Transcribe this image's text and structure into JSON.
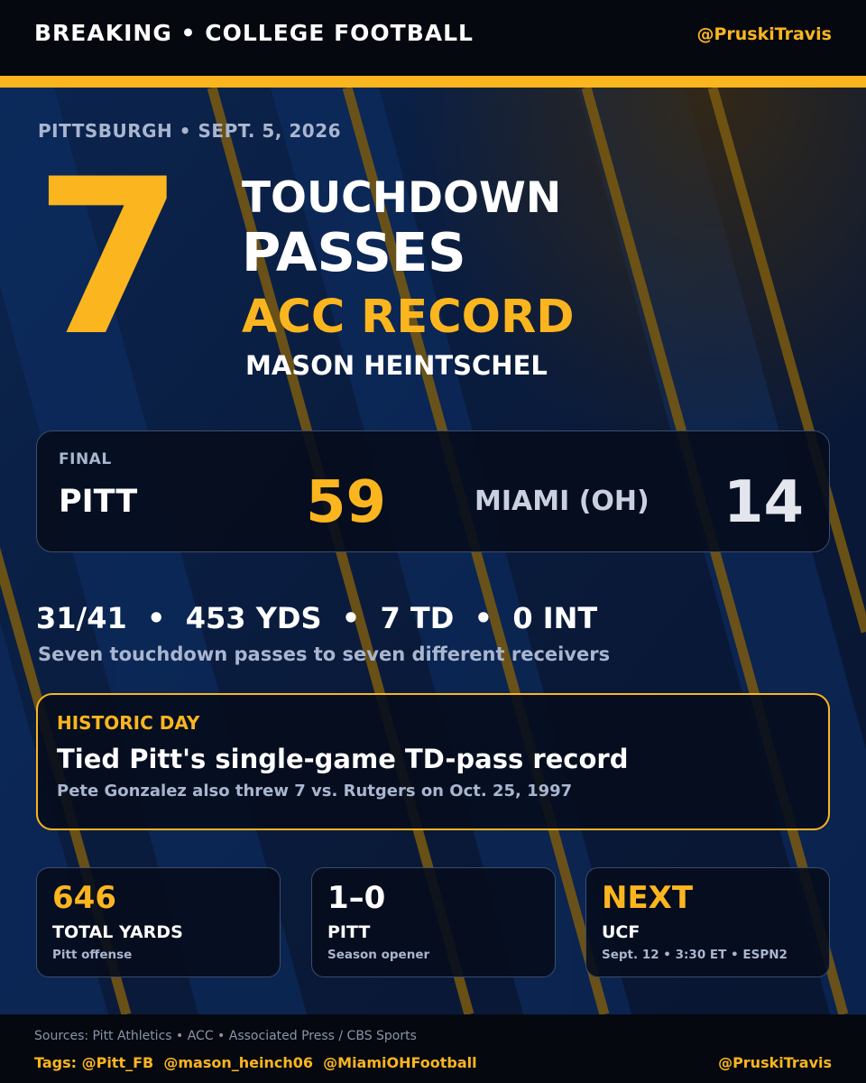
{
  "colors": {
    "gold": "#fbb51f",
    "navy": "#0a1630",
    "dark": "#05080f",
    "muted": "#a9b6cf"
  },
  "header": {
    "kicker": "BREAKING • COLLEGE FOOTBALL",
    "handle": "@PruskiTravis"
  },
  "hero": {
    "dateline": "PITTSBURGH • SEPT. 5, 2026",
    "number": "7",
    "line1": "TOUCHDOWN",
    "line2": "PASSES",
    "line3": "ACC RECORD",
    "player": "MASON HEINTSCHEL"
  },
  "score": {
    "status": "FINAL",
    "home_team": "PITT",
    "home_score": "59",
    "away_team": "MIAMI (OH)",
    "away_score": "14"
  },
  "stats": {
    "line": "31/41  •  453 YDS  •  7 TD  •  0 INT",
    "subtitle": "Seven touchdown passes to seven different receivers"
  },
  "historic": {
    "label": "HISTORIC DAY",
    "headline": "Tied Pitt's single-game TD-pass record",
    "note": "Pete Gonzalez also threw 7 vs. Rutgers on Oct. 25, 1997"
  },
  "cards": [
    {
      "big": "646",
      "mid": "TOTAL YARDS",
      "small": "Pitt offense"
    },
    {
      "big": "1–0",
      "mid": "PITT",
      "small": "Season opener"
    },
    {
      "big": "NEXT",
      "mid": "UCF",
      "small": "Sept. 12 • 3:30 ET • ESPN2"
    }
  ],
  "footer": {
    "sources": "Sources: Pitt Athletics • ACC • Associated Press / CBS Sports",
    "tags": "Tags: @Pitt_FB  @mason_heinch06  @MiamiOHFootball",
    "handle": "@PruskiTravis"
  }
}
